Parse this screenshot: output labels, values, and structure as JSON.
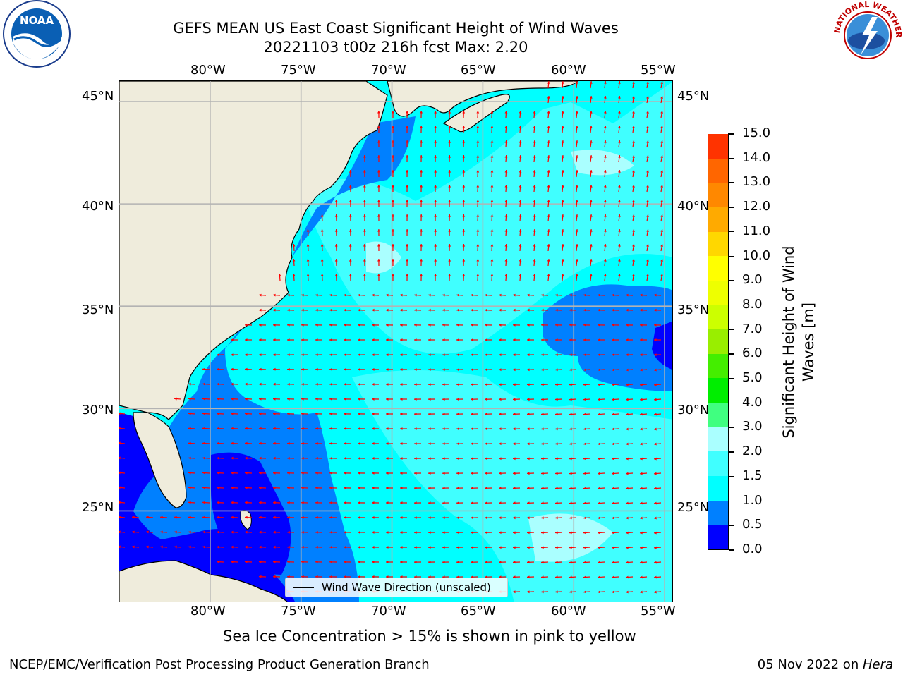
{
  "title": {
    "line1": "GEFS MEAN US East Coast Significant Height of Wind Waves",
    "line2": "20221103 t00z 216h fcst   Max: 2.20"
  },
  "map": {
    "lon_labels": [
      "80°W",
      "75°W",
      "70°W",
      "65°W",
      "60°W",
      "55°W"
    ],
    "lat_labels": [
      "45°N",
      "40°N",
      "35°N",
      "30°N",
      "25°N"
    ],
    "lon_range": [
      -85,
      -54.5
    ],
    "lat_range": [
      20.5,
      46
    ],
    "legend_label": "Wind Wave Direction (unscaled)",
    "arrow_color": "#ff0000",
    "land_color": "#efecdc"
  },
  "colorbar": {
    "label_line1": "Significant Height of Wind",
    "label_line2": "Waves [m]",
    "tick_labels": [
      "0.0",
      "0.5",
      "1.0",
      "1.5",
      "2.0",
      "3.0",
      "4.0",
      "5.0",
      "6.0",
      "7.0",
      "8.0",
      "9.0",
      "10.0",
      "11.0",
      "12.0",
      "13.0",
      "14.0",
      "15.0"
    ],
    "colors": [
      "#0000ff",
      "#0080ff",
      "#00ffff",
      "#40ffff",
      "#aaffff",
      "#40ff80",
      "#00ee00",
      "#44ee00",
      "#99ee00",
      "#ccff00",
      "#eeff00",
      "#ffff00",
      "#ffd700",
      "#ffaa00",
      "#ff8800",
      "#ff6600",
      "#ff3300"
    ]
  },
  "note": "Sea Ice Concentration > 15% is shown in pink to yellow",
  "footer": {
    "left": "NCEP/EMC/Verification Post Processing Product Generation Branch",
    "date": "05 Nov 2022 on ",
    "machine": "Hera"
  },
  "logos": {
    "noaa_text": "NOAA",
    "noaa_ring": "NATIONAL OCEANIC AND ATMOSPHERIC ADMINISTRATION · U.S. DEPARTMENT OF COMMERCE",
    "nws_ring": "NATIONAL WEATHER SERVICE"
  }
}
